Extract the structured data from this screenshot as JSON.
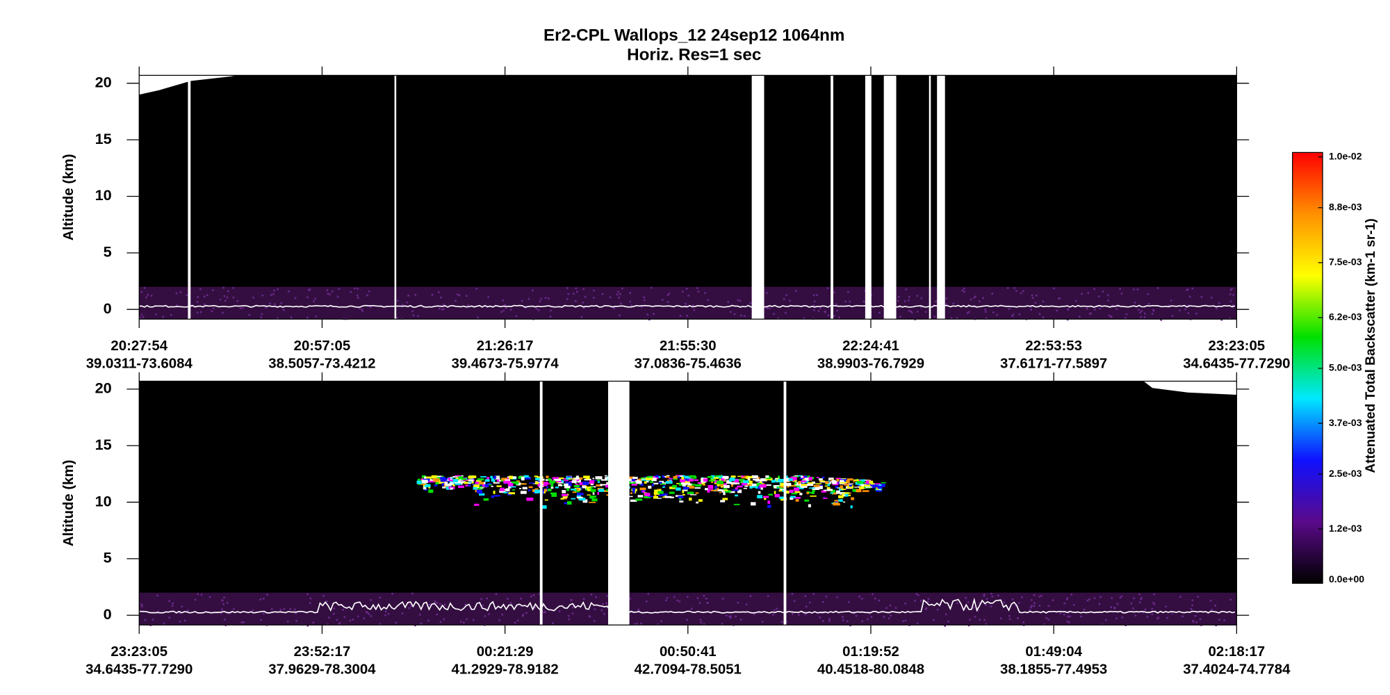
{
  "title": "Er2-CPL  Wallops_12  24sep12  1064nm",
  "subtitle": "Horiz. Res=1 sec",
  "chart_data": [
    {
      "type": "curtain",
      "ylabel": "Altitude (km)",
      "ylim": [
        -0.86,
        20.7
      ],
      "yticks": [
        0,
        5,
        10,
        15,
        20
      ],
      "categories": [
        "20:27:54",
        "20:57:05",
        "21:26:17",
        "21:55:30",
        "22:24:41",
        "22:53:53",
        "23:23:05"
      ],
      "category_locations": [
        "39.0311-73.6084",
        "38.5057-73.4212",
        "39.4673-75.9774",
        "37.0836-75.4636",
        "38.9903-76.7929",
        "37.6171-77.5897",
        "34.6435-77.7290"
      ]
    },
    {
      "type": "curtain",
      "ylabel": "Altitude (km)",
      "ylim": [
        -0.86,
        20.7
      ],
      "yticks": [
        0,
        5,
        10,
        15,
        20
      ],
      "categories": [
        "23:23:05",
        "23:52:17",
        "00:21:29",
        "00:50:41",
        "01:19:52",
        "01:49:04",
        "02:18:17"
      ],
      "category_locations": [
        "34.6435-77.7290",
        "37.9629-78.3004",
        "41.2929-78.9182",
        "42.7094-78.5051",
        "40.4518-80.0848",
        "38.1855-77.4953",
        "37.4024-74.7784"
      ]
    }
  ],
  "colorbar": {
    "title": "Attenuated Total Backscatter (km-1 sr-1)",
    "ylim": [
      0,
      0.01
    ],
    "yticks": [
      {
        "value": 0,
        "label": "0.0e+00"
      },
      {
        "value": 0.0012,
        "label": "1.2e-03"
      },
      {
        "value": 0.0025,
        "label": "2.5e-03"
      },
      {
        "value": 0.0037,
        "label": "3.7e-03"
      },
      {
        "value": 0.005,
        "label": "5.0e-03"
      },
      {
        "value": 0.0062,
        "label": "6.2e-03"
      },
      {
        "value": 0.0075,
        "label": "7.5e-03"
      },
      {
        "value": 0.0088,
        "label": "8.8e-03"
      },
      {
        "value": 0.01,
        "label": "1.0e-02"
      }
    ],
    "colors": [
      "#000000",
      "#5a0a8a",
      "#1010ff",
      "#00e8ff",
      "#00e000",
      "#ffff00",
      "#ff9000",
      "#ff0000"
    ]
  }
}
